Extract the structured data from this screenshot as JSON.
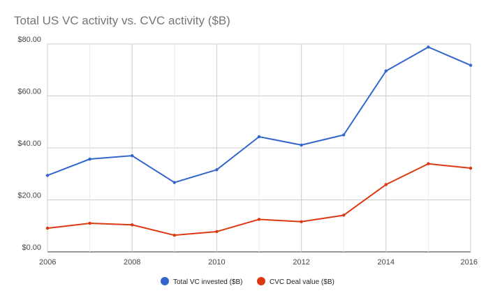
{
  "chart_data": {
    "type": "line",
    "title": "Total US VC activity vs. CVC activity ($B)",
    "xlabel": "",
    "ylabel": "",
    "x": [
      2006,
      2007,
      2008,
      2009,
      2010,
      2011,
      2012,
      2013,
      2014,
      2015,
      2016
    ],
    "x_tick_labels": [
      "2006",
      "2008",
      "2010",
      "2012",
      "2014",
      "2016"
    ],
    "y_tick_labels": [
      "$0.00",
      "$20.00",
      "$40.00",
      "$60.00",
      "$80.00"
    ],
    "ylim": [
      0,
      80
    ],
    "xlim": [
      2006,
      2016
    ],
    "grid": true,
    "legend_position": "bottom",
    "series": [
      {
        "name": "Total VC invested ($B)",
        "color": "#3366cc",
        "values": [
          29.4,
          35.7,
          37.0,
          26.7,
          31.6,
          44.3,
          41.1,
          45.0,
          69.6,
          78.8,
          71.8
        ]
      },
      {
        "name": "CVC Deal value ($B)",
        "color": "#dc3912",
        "values": [
          9.1,
          11.0,
          10.4,
          6.4,
          7.8,
          12.5,
          11.6,
          14.1,
          25.9,
          33.9,
          32.2
        ]
      }
    ]
  }
}
